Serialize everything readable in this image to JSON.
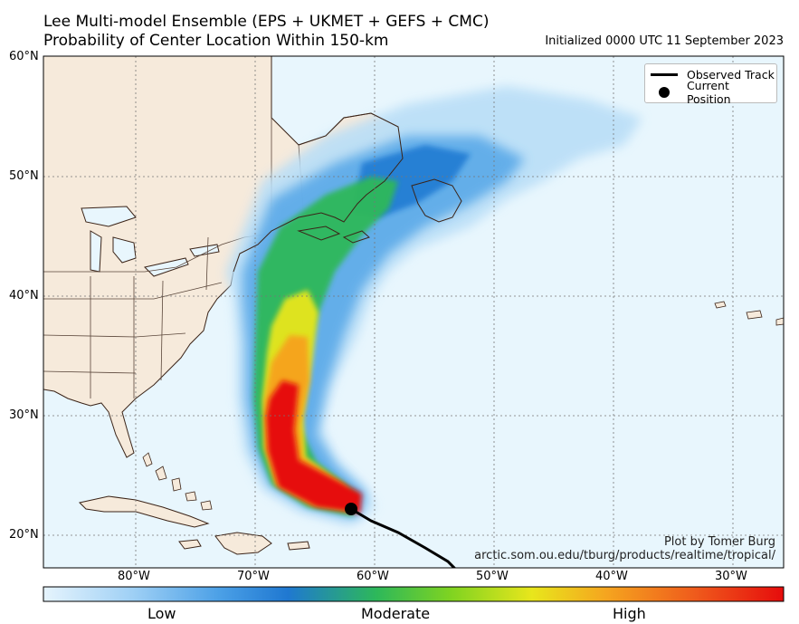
{
  "title_line1": "Lee Multi-model Ensemble (EPS + UKMET + GEFS + CMC)",
  "title_line2": "Probability of Center Location Within 150-km",
  "initialized": "Initialized 0000 UTC 11 September 2023",
  "legend": {
    "observed_track": "Observed Track",
    "current_position": "Current Position"
  },
  "credit_line1": "Plot by Tomer Burg",
  "credit_line2": "arctic.som.ou.edu/tburg/products/realtime/tropical/",
  "lat_ticks": [
    "60°N",
    "50°N",
    "40°N",
    "30°N",
    "20°N"
  ],
  "lon_ticks": [
    "80°W",
    "70°W",
    "60°W",
    "50°W",
    "40°W",
    "30°W"
  ],
  "colorbar": {
    "low": "Low",
    "moderate": "Moderate",
    "high": "High",
    "stops": [
      "#e6f4fd",
      "#9fd0f5",
      "#4a9fe6",
      "#1f78d1",
      "#2db85a",
      "#7fd321",
      "#e8e61c",
      "#f5a51f",
      "#ef5b1c",
      "#e60c0c"
    ]
  },
  "colors": {
    "ocean": "#e8f6fd",
    "land": "#f6eadb",
    "coast": "#3b2418"
  }
}
